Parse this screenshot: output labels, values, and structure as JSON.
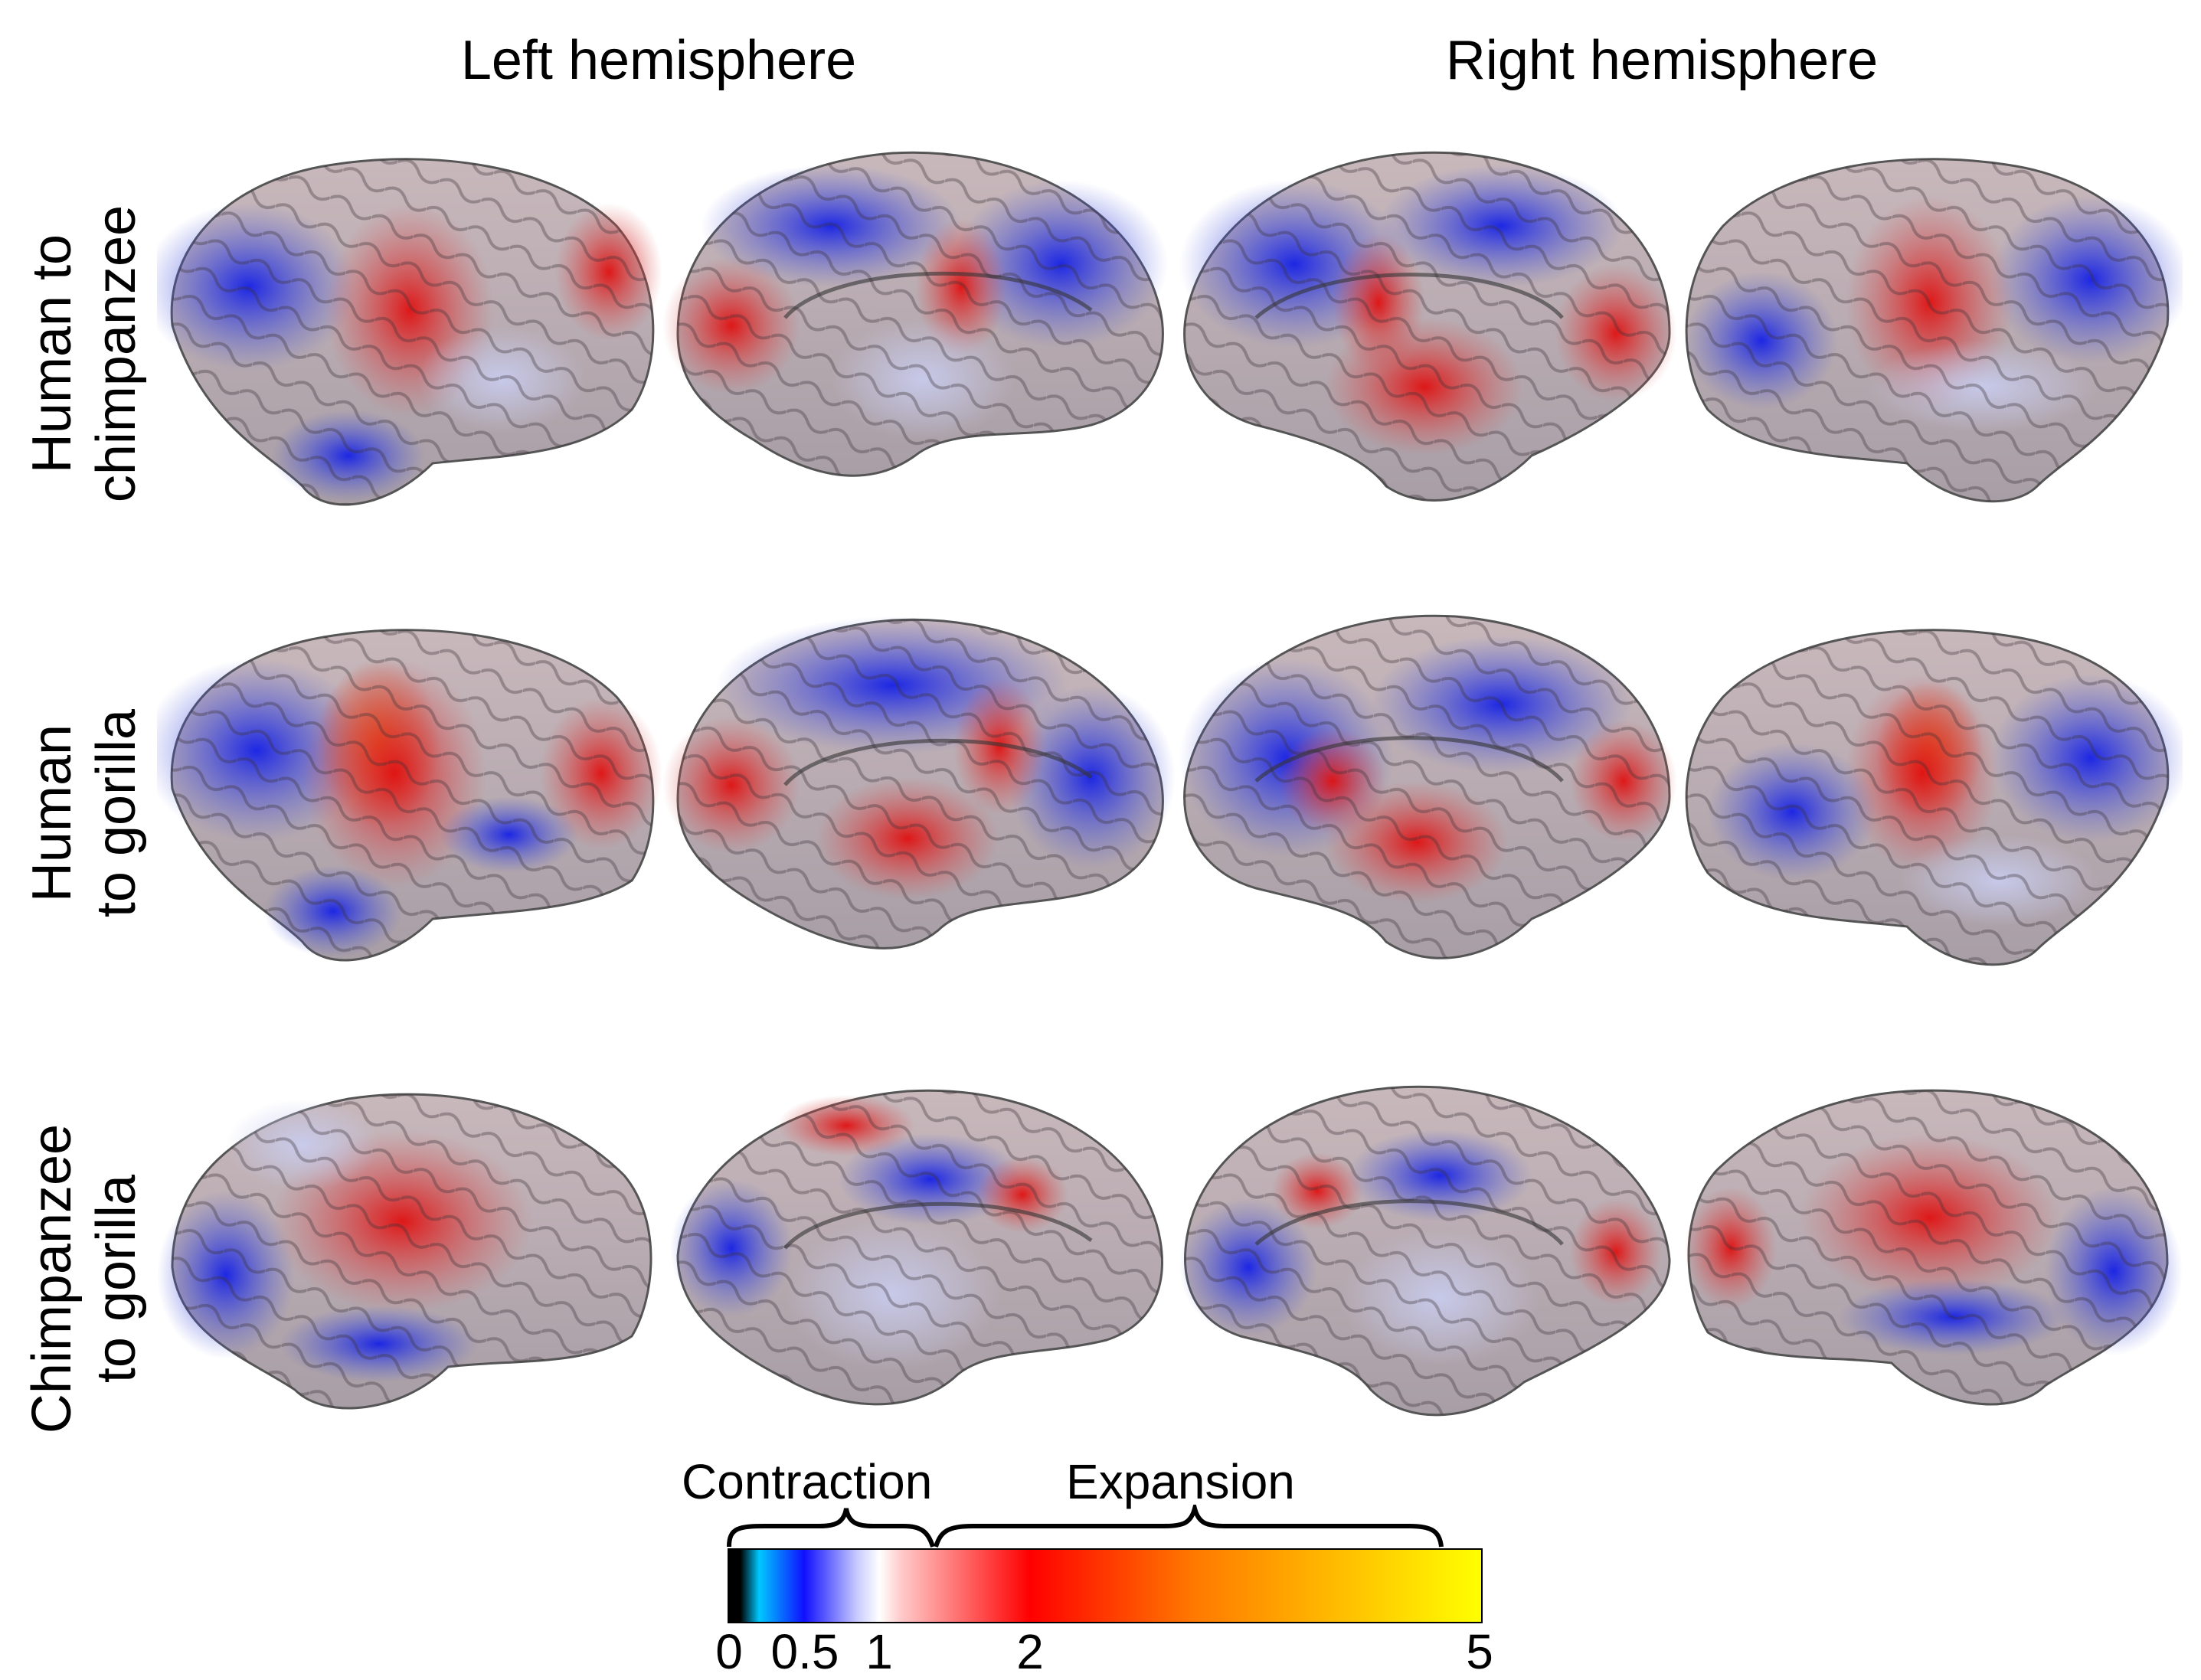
{
  "column_headers": {
    "left": "Left hemisphere",
    "right": "Right hemisphere"
  },
  "rows": [
    {
      "label_line1": "Human to",
      "label_line2": "chimpanzee"
    },
    {
      "label_line1": "Human",
      "label_line2": "to gorilla"
    },
    {
      "label_line1": "Chimpanzee",
      "label_line2": "to gorilla"
    }
  ],
  "views": [
    "left-lateral",
    "left-medial",
    "right-medial",
    "right-lateral"
  ],
  "colorbar": {
    "contraction_label": "Contraction",
    "expansion_label": "Expansion",
    "ticks": [
      {
        "label": "0",
        "value": 0
      },
      {
        "label": "0.5",
        "value": 0.5
      },
      {
        "label": "1",
        "value": 1
      },
      {
        "label": "2",
        "value": 2
      },
      {
        "label": "5",
        "value": 5
      }
    ],
    "colors": {
      "black": "#000000",
      "cyan": "#00c8ff",
      "blue": "#1010ff",
      "neutral": "#ffffff",
      "red": "#ff0000",
      "orange": "#ff7a00",
      "yellow": "#ffff00"
    }
  }
}
